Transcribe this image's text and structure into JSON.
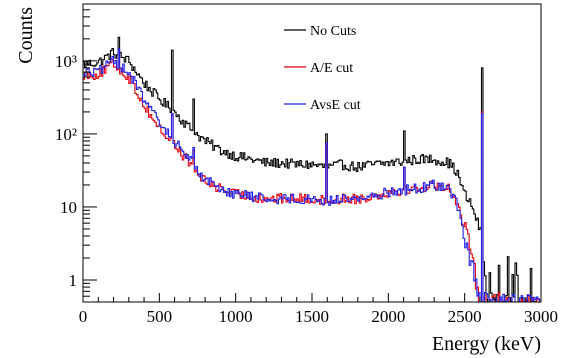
{
  "chart_data": {
    "type": "line",
    "title": "",
    "xlabel": "Energy (keV)",
    "ylabel": "Counts",
    "xlim": [
      0,
      3000
    ],
    "ylim": [
      0.5,
      6000
    ],
    "yscale": "log",
    "grid": false,
    "legend_position": "top-right",
    "x_ticks": [
      0,
      500,
      1000,
      1500,
      2000,
      2500,
      3000
    ],
    "x_tick_labels": [
      "0",
      "500",
      "1000",
      "1500",
      "2000",
      "2500",
      "3000"
    ],
    "y_ticks": [
      1,
      10,
      100,
      1000
    ],
    "y_tick_labels": [
      "1",
      "10",
      "10²",
      "10³"
    ],
    "x": [
      0,
      100,
      200,
      300,
      400,
      500,
      600,
      700,
      800,
      900,
      1000,
      1100,
      1200,
      1300,
      1400,
      1500,
      1600,
      1700,
      1800,
      1900,
      2000,
      2100,
      2200,
      2300,
      2400,
      2450,
      2500,
      2550,
      2600,
      2650,
      2700,
      2800,
      2900,
      3000
    ],
    "series": [
      {
        "name": "No Cuts",
        "color": "#000000",
        "values": [
          900,
          950,
          1300,
          1000,
          500,
          300,
          200,
          120,
          80,
          60,
          50,
          45,
          40,
          40,
          38,
          38,
          35,
          38,
          35,
          38,
          40,
          42,
          45,
          45,
          40,
          30,
          15,
          10,
          5,
          0.5,
          0.5,
          0.5,
          0.5,
          0.5
        ]
      },
      {
        "name": "A/E cut",
        "color": "#e8000b",
        "values": [
          650,
          650,
          900,
          600,
          250,
          120,
          70,
          40,
          22,
          18,
          15,
          14,
          13,
          13,
          13,
          13,
          12,
          13,
          13,
          14,
          16,
          17,
          18,
          20,
          18,
          12,
          5,
          2,
          0.5,
          0.5,
          0.5,
          0.5,
          0.5,
          0.5
        ]
      },
      {
        "name": "AvsE cut",
        "color": "#1f1fe8",
        "values": [
          700,
          700,
          1000,
          700,
          300,
          140,
          80,
          45,
          24,
          18,
          15,
          14,
          13,
          13,
          13,
          13,
          12,
          13,
          13,
          14,
          16,
          17,
          18,
          20,
          18,
          11,
          4,
          1.5,
          0.5,
          0.5,
          0.5,
          0.5,
          0.5,
          0.5
        ]
      }
    ],
    "peaks": [
      {
        "x": 239,
        "values": [
          2100,
          1350,
          1450
        ]
      },
      {
        "x": 583,
        "values": [
          1400,
          180,
          190
        ]
      },
      {
        "x": 727,
        "values": [
          300,
          60,
          65
        ]
      },
      {
        "x": 1593,
        "values": [
          100,
          75,
          75
        ]
      },
      {
        "x": 2104,
        "values": [
          110,
          35,
          35
        ]
      },
      {
        "x": 2614,
        "values": [
          800,
          200,
          190
        ]
      }
    ]
  }
}
